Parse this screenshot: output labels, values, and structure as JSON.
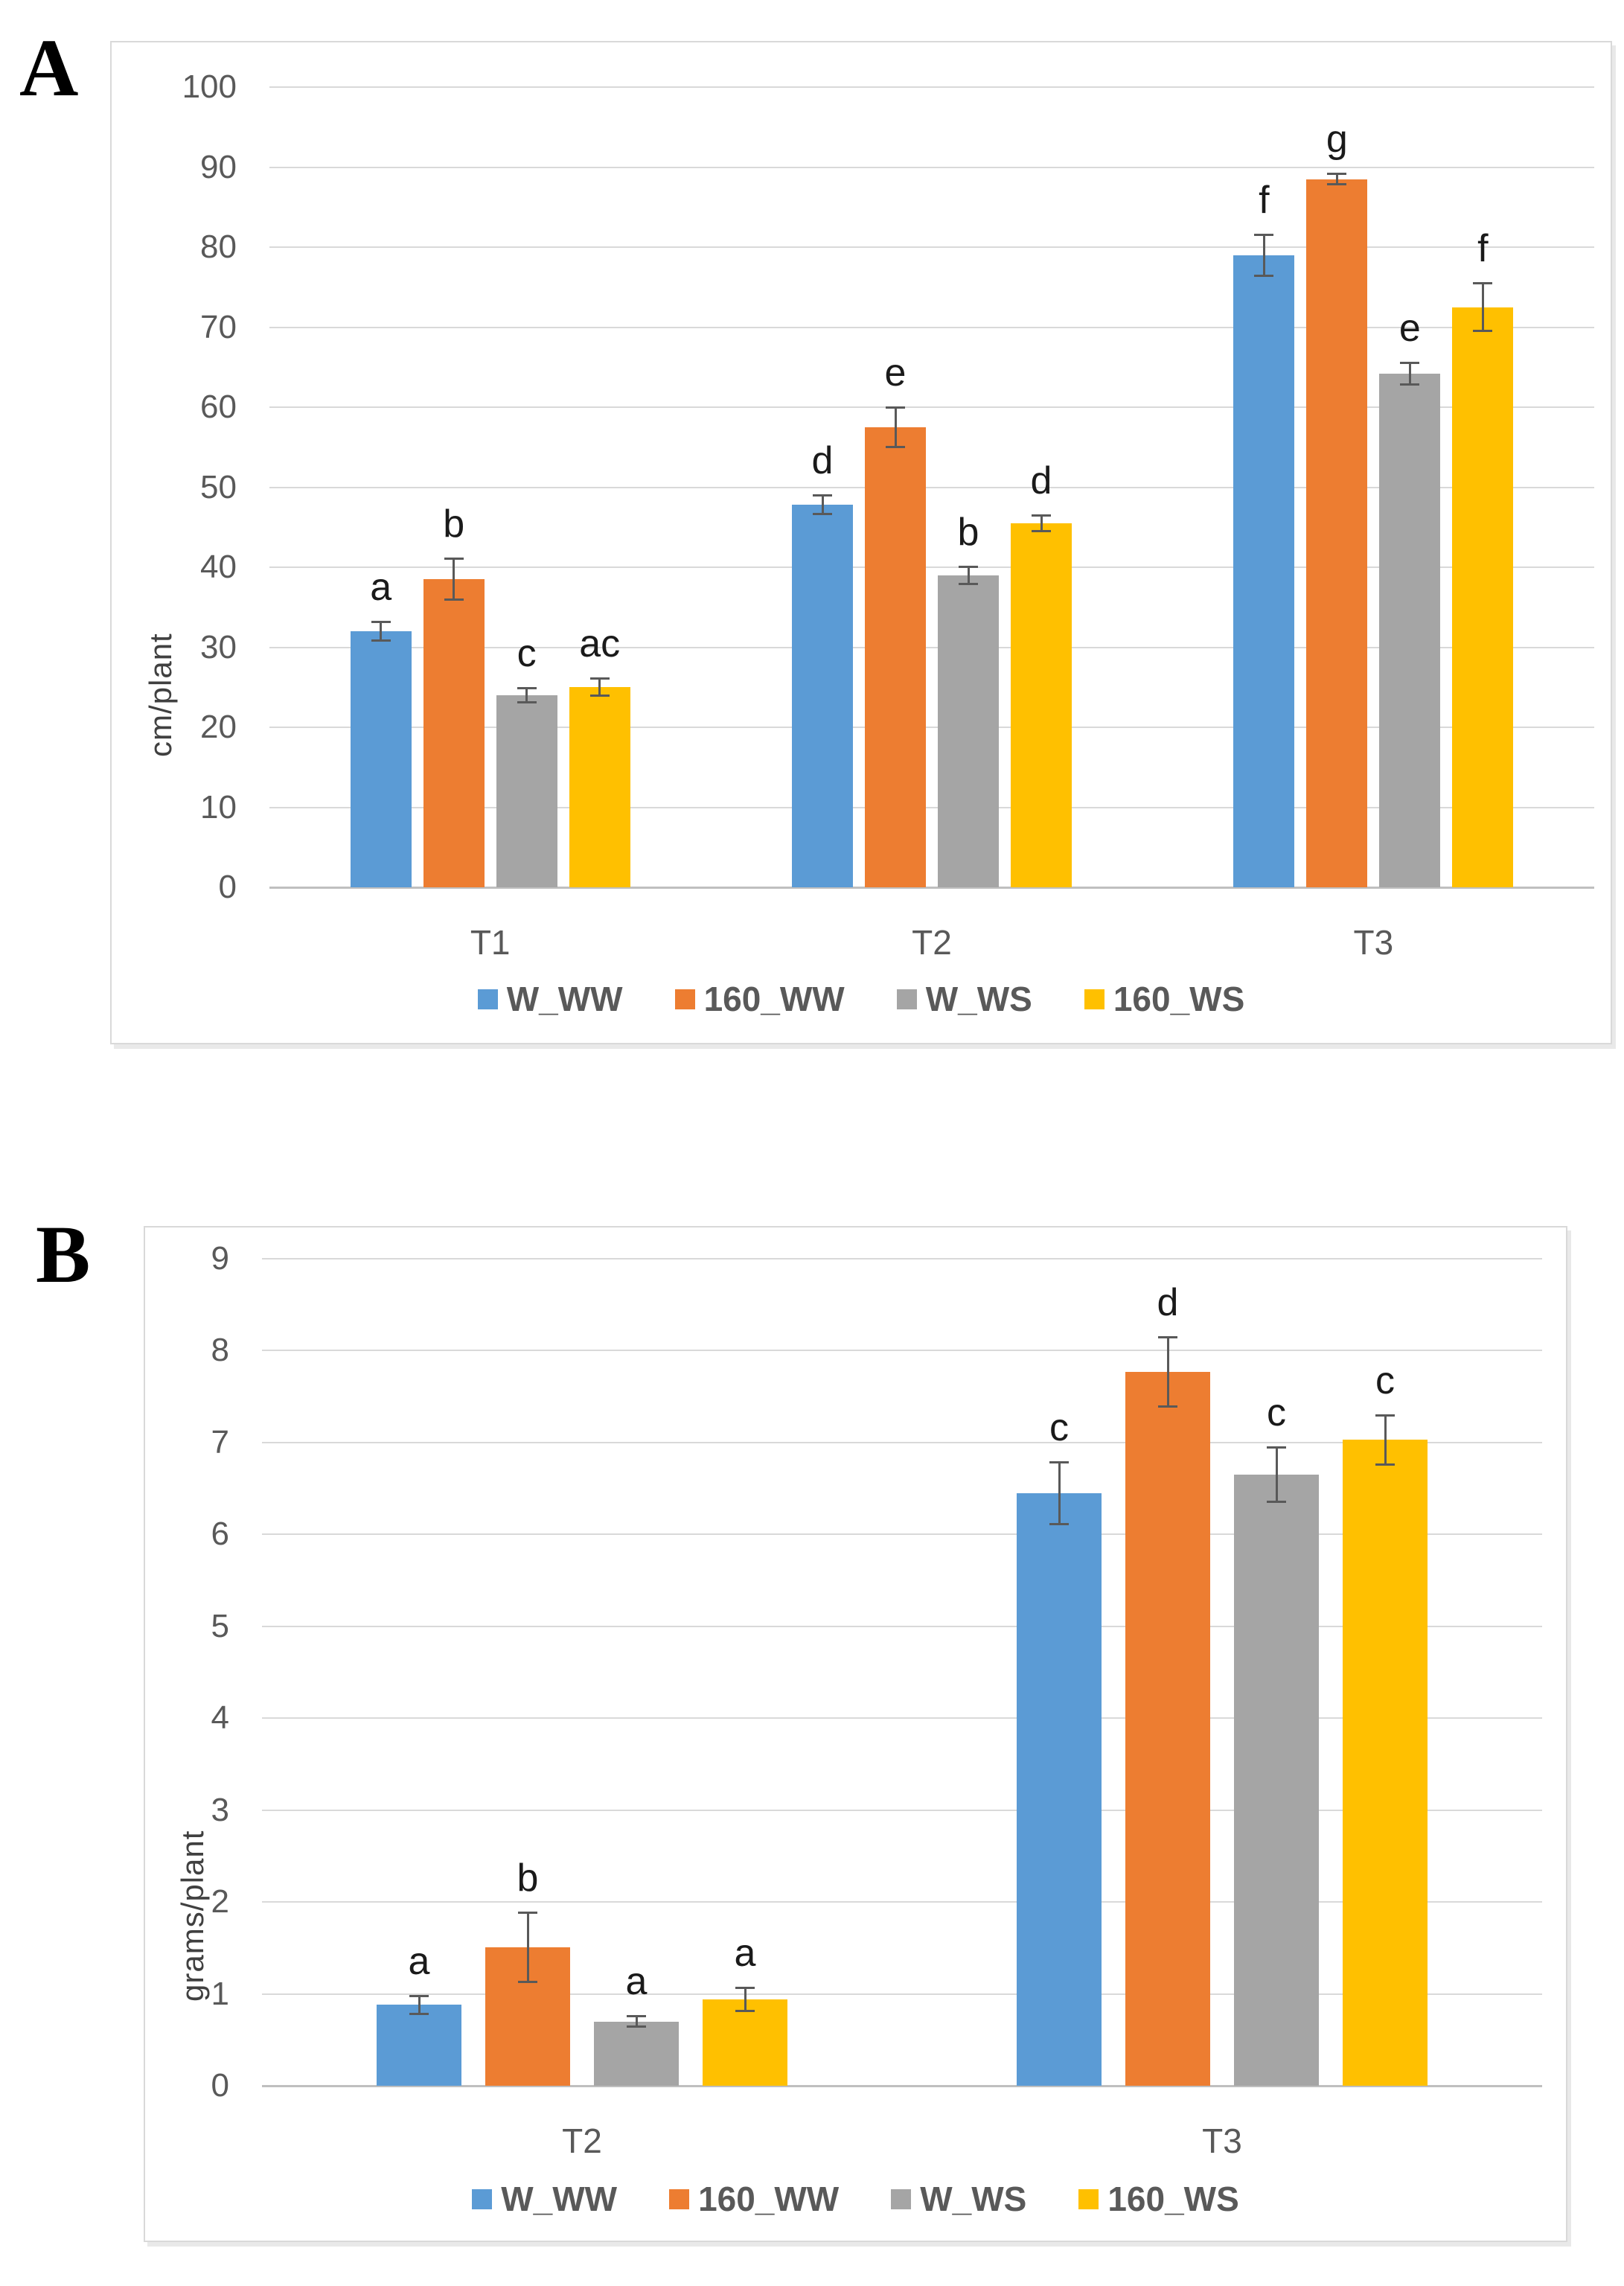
{
  "colors": {
    "blue": "#5B9BD5",
    "orange": "#ED7D31",
    "gray": "#A5A5A5",
    "yellow": "#FFC000",
    "gridline": "#D9D9D9",
    "axis_line": "#BFBFBF",
    "tick_text": "#595959",
    "error_bar": "#595959",
    "panel_border": "#D9D9D9"
  },
  "chart_data": [
    {
      "type": "bar",
      "panel_label": "A",
      "title": "",
      "xlabel": "",
      "ylabel": "cm/plant",
      "ylim": [
        0,
        100
      ],
      "yticks": [
        0,
        10,
        20,
        30,
        40,
        50,
        60,
        70,
        80,
        90,
        100
      ],
      "grid": "horizontal",
      "legend_position": "bottom",
      "categories": [
        "T1",
        "T2",
        "T3"
      ],
      "series": [
        {
          "name": "W_WW",
          "color": "#5B9BD5",
          "values": [
            32,
            47.8,
            79
          ],
          "errors": [
            1.2,
            1.2,
            2.6
          ],
          "letters": [
            "a",
            "d",
            "f"
          ]
        },
        {
          "name": "160_WW",
          "color": "#ED7D31",
          "values": [
            38.5,
            57.5,
            88.5
          ],
          "errors": [
            2.6,
            2.5,
            0.7
          ],
          "letters": [
            "b",
            "e",
            "g"
          ]
        },
        {
          "name": "W_WS",
          "color": "#A5A5A5",
          "values": [
            24,
            39,
            64.2
          ],
          "errors": [
            0.9,
            1.1,
            1.4
          ],
          "letters": [
            "c",
            "b",
            "e"
          ]
        },
        {
          "name": "160_WS",
          "color": "#FFC000",
          "values": [
            25,
            45.5,
            72.5
          ],
          "errors": [
            1.1,
            1.0,
            3.0
          ],
          "letters": [
            "ac",
            "d",
            "f"
          ]
        }
      ]
    },
    {
      "type": "bar",
      "panel_label": "B",
      "title": "",
      "xlabel": "",
      "ylabel": "grams/plant",
      "ylim": [
        0,
        9
      ],
      "yticks": [
        0,
        1,
        2,
        3,
        4,
        5,
        6,
        7,
        8,
        9
      ],
      "grid": "horizontal",
      "legend_position": "bottom",
      "categories": [
        "T2",
        "T3"
      ],
      "series": [
        {
          "name": "W_WW",
          "color": "#5B9BD5",
          "values": [
            0.88,
            6.45
          ],
          "errors": [
            0.1,
            0.34
          ],
          "letters": [
            "a",
            "c"
          ]
        },
        {
          "name": "160_WW",
          "color": "#ED7D31",
          "values": [
            1.51,
            7.77
          ],
          "errors": [
            0.38,
            0.38
          ],
          "letters": [
            "b",
            "d"
          ]
        },
        {
          "name": "W_WS",
          "color": "#A5A5A5",
          "values": [
            0.7,
            6.65
          ],
          "errors": [
            0.06,
            0.3
          ],
          "letters": [
            "a",
            "c"
          ]
        },
        {
          "name": "160_WS",
          "color": "#FFC000",
          "values": [
            0.94,
            7.03
          ],
          "errors": [
            0.13,
            0.27
          ],
          "letters": [
            "a",
            "c"
          ]
        }
      ]
    }
  ]
}
